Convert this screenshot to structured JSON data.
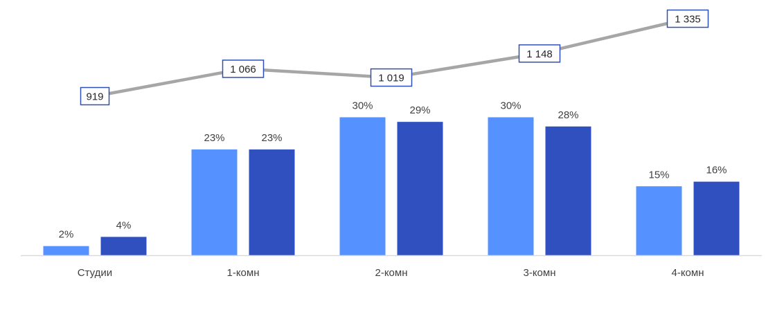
{
  "chart_data": {
    "type": "bar",
    "categories": [
      "Студии",
      "1-комн",
      "2-комн",
      "3-комн",
      "4-комн"
    ],
    "series": [
      {
        "kind": "bar",
        "values": [
          2,
          23,
          30,
          30,
          15
        ],
        "labels": [
          "2%",
          "23%",
          "30%",
          "30%",
          "15%"
        ],
        "color": "#5591FF"
      },
      {
        "kind": "bar",
        "values": [
          4,
          23,
          29,
          28,
          16
        ],
        "labels": [
          "4%",
          "23%",
          "29%",
          "28%",
          "16%"
        ],
        "color": "#3050C0"
      },
      {
        "kind": "line",
        "values": [
          919,
          1066,
          1019,
          1148,
          1335
        ],
        "labels": [
          "919",
          "1 066",
          "1 019",
          "1 148",
          "1 335"
        ],
        "color": "#A6A6A6",
        "label_border_color": "#2F4FB5"
      }
    ],
    "grid": false,
    "legend": "none",
    "axis_line_color": "#D9D9D9"
  }
}
